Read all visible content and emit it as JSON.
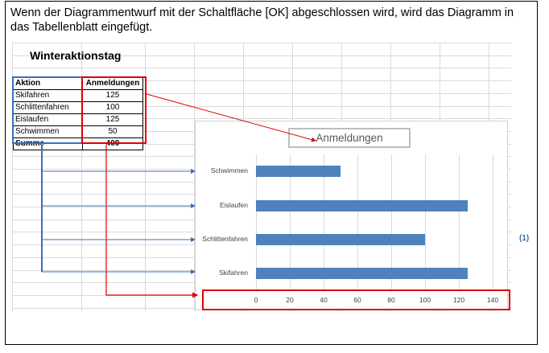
{
  "caption": "Wenn der Diagrammentwurf mit der Schaltfläche [OK] abgeschlossen wird, wird das Diagramm in das Tabellenblatt eingefügt.",
  "sheet": {
    "title": "Winteraktionstag",
    "header": {
      "col1": "Aktion",
      "col2": "Anmeldungen"
    },
    "rows": [
      {
        "aktion": "Skifahren",
        "anmeldungen": "125"
      },
      {
        "aktion": "Schlittenfahren",
        "anmeldungen": "100"
      },
      {
        "aktion": "Eislaufen",
        "anmeldungen": "125"
      },
      {
        "aktion": "Schwimmen",
        "anmeldungen": "50"
      }
    ],
    "sum": {
      "label": "Summe",
      "value": "400"
    }
  },
  "chart_data": {
    "type": "bar",
    "orientation": "horizontal",
    "title": "Anmeldungen",
    "categories": [
      "Schwimmen",
      "Eislaufen",
      "Schlittenfahren",
      "Skifahren"
    ],
    "values": [
      50,
      125,
      100,
      125
    ],
    "x_ticks": [
      "0",
      "20",
      "40",
      "60",
      "80",
      "100",
      "120",
      "140"
    ],
    "xlim": [
      0,
      140
    ],
    "grid": true,
    "bar_color": "#4f81bd"
  },
  "note": "(1)",
  "colors": {
    "highlight_red": "#e00000",
    "highlight_blue": "#3b6fb6"
  }
}
